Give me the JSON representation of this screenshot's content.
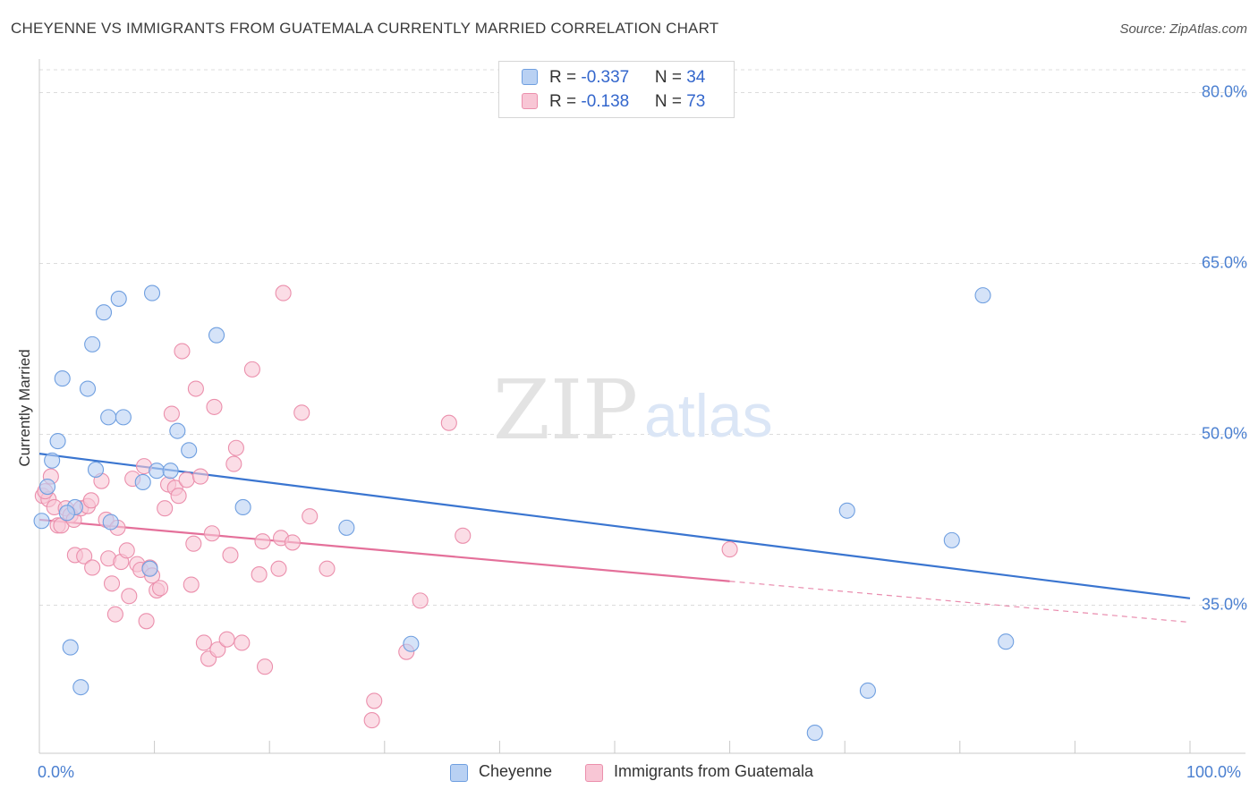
{
  "header": {
    "title": "CHEYENNE VS IMMIGRANTS FROM GUATEMALA CURRENTLY MARRIED CORRELATION CHART",
    "source": "Source: ZipAtlas.com"
  },
  "watermark": {
    "zip": "ZIP",
    "atlas": "atlas"
  },
  "chart_data": {
    "type": "scatter",
    "ylabel": "Currently Married",
    "xlim": [
      0,
      100
    ],
    "ylim": [
      22,
      82
    ],
    "x_tick_labels": [
      "0.0%",
      "100.0%"
    ],
    "y_ticks": [
      {
        "value": 80,
        "label": "80.0%"
      },
      {
        "value": 65,
        "label": "65.0%"
      },
      {
        "value": 50,
        "label": "50.0%"
      },
      {
        "value": 35,
        "label": "35.0%"
      }
    ],
    "grid": "dashed horizontal",
    "colors": {
      "cheyenne_fill": "#b9d1f3",
      "cheyenne_stroke": "#6f9fe0",
      "cheyenne_line": "#3a75d0",
      "guatemala_fill": "#f8c6d5",
      "guatemala_stroke": "#eb8fac",
      "guatemala_line": "#e4709a",
      "tick_label": "#4a7fd0"
    },
    "legend": {
      "rows": [
        {
          "r_label": "R = ",
          "r_value": "-0.337",
          "n_label": "N = ",
          "n_value": "34"
        },
        {
          "r_label": "R = ",
          "r_value": "-0.138",
          "n_label": "N = ",
          "n_value": "73"
        }
      ]
    },
    "series": [
      {
        "name": "Cheyenne",
        "trend": {
          "x": [
            0,
            100
          ],
          "y": [
            48.3,
            35.6
          ],
          "solid_to": 100
        },
        "points": [
          [
            0.2,
            42.4
          ],
          [
            0.7,
            45.4
          ],
          [
            1.1,
            47.7
          ],
          [
            1.6,
            49.4
          ],
          [
            2.0,
            54.9
          ],
          [
            2.7,
            31.3
          ],
          [
            3.1,
            43.6
          ],
          [
            3.6,
            27.8
          ],
          [
            4.2,
            54.0
          ],
          [
            4.6,
            57.9
          ],
          [
            4.9,
            46.9
          ],
          [
            5.6,
            60.7
          ],
          [
            6.0,
            51.5
          ],
          [
            7.3,
            51.5
          ],
          [
            6.9,
            61.9
          ],
          [
            6.2,
            42.3
          ],
          [
            9.0,
            45.8
          ],
          [
            9.6,
            38.2
          ],
          [
            9.8,
            62.4
          ],
          [
            10.2,
            46.8
          ],
          [
            11.4,
            46.8
          ],
          [
            12.0,
            50.3
          ],
          [
            13.0,
            48.6
          ],
          [
            15.4,
            58.7
          ],
          [
            17.7,
            43.6
          ],
          [
            26.7,
            41.8
          ],
          [
            32.3,
            31.6
          ],
          [
            67.4,
            23.8
          ],
          [
            70.2,
            43.3
          ],
          [
            72.0,
            27.5
          ],
          [
            79.3,
            40.7
          ],
          [
            82.0,
            62.2
          ],
          [
            84.0,
            31.8
          ],
          [
            2.4,
            43.1
          ]
        ]
      },
      {
        "name": "Immigrants from Guatemala",
        "trend": {
          "x": [
            0,
            100
          ],
          "y": [
            42.5,
            33.5
          ],
          "solid_to": 60
        },
        "points": [
          [
            0.3,
            44.6
          ],
          [
            0.8,
            44.3
          ],
          [
            1.3,
            43.6
          ],
          [
            1.6,
            42.0
          ],
          [
            1.9,
            42.0
          ],
          [
            2.3,
            43.5
          ],
          [
            2.7,
            42.9
          ],
          [
            3.0,
            42.5
          ],
          [
            3.1,
            39.4
          ],
          [
            3.6,
            43.5
          ],
          [
            3.9,
            39.3
          ],
          [
            4.2,
            43.7
          ],
          [
            4.5,
            44.2
          ],
          [
            4.6,
            38.3
          ],
          [
            5.4,
            45.9
          ],
          [
            5.8,
            42.5
          ],
          [
            6.0,
            39.1
          ],
          [
            6.3,
            36.9
          ],
          [
            6.6,
            34.2
          ],
          [
            6.8,
            41.8
          ],
          [
            7.1,
            38.8
          ],
          [
            7.6,
            39.8
          ],
          [
            7.8,
            35.8
          ],
          [
            8.1,
            46.1
          ],
          [
            8.5,
            38.6
          ],
          [
            8.8,
            38.1
          ],
          [
            9.1,
            47.2
          ],
          [
            9.3,
            33.6
          ],
          [
            9.6,
            38.3
          ],
          [
            9.8,
            37.6
          ],
          [
            10.2,
            36.3
          ],
          [
            10.5,
            36.5
          ],
          [
            10.9,
            43.5
          ],
          [
            11.2,
            45.6
          ],
          [
            11.5,
            51.8
          ],
          [
            11.8,
            45.3
          ],
          [
            12.1,
            44.6
          ],
          [
            12.4,
            57.3
          ],
          [
            12.8,
            46.0
          ],
          [
            13.2,
            36.8
          ],
          [
            13.4,
            40.4
          ],
          [
            13.6,
            54.0
          ],
          [
            14.0,
            46.3
          ],
          [
            14.3,
            31.7
          ],
          [
            14.7,
            30.3
          ],
          [
            15.0,
            41.3
          ],
          [
            15.2,
            52.4
          ],
          [
            15.5,
            31.1
          ],
          [
            16.3,
            32.0
          ],
          [
            16.6,
            39.4
          ],
          [
            16.9,
            47.4
          ],
          [
            17.1,
            48.8
          ],
          [
            17.6,
            31.7
          ],
          [
            18.5,
            55.7
          ],
          [
            19.1,
            37.7
          ],
          [
            19.4,
            40.6
          ],
          [
            19.6,
            29.6
          ],
          [
            20.8,
            38.2
          ],
          [
            21.0,
            40.9
          ],
          [
            21.2,
            62.4
          ],
          [
            22.0,
            40.5
          ],
          [
            22.8,
            51.9
          ],
          [
            23.5,
            42.8
          ],
          [
            25.0,
            38.2
          ],
          [
            28.9,
            24.9
          ],
          [
            29.1,
            26.6
          ],
          [
            31.9,
            30.9
          ],
          [
            33.1,
            35.4
          ],
          [
            35.6,
            51.0
          ],
          [
            36.8,
            41.1
          ],
          [
            60.0,
            39.9
          ],
          [
            0.5,
            45.0
          ],
          [
            1.0,
            46.3
          ]
        ]
      }
    ]
  }
}
